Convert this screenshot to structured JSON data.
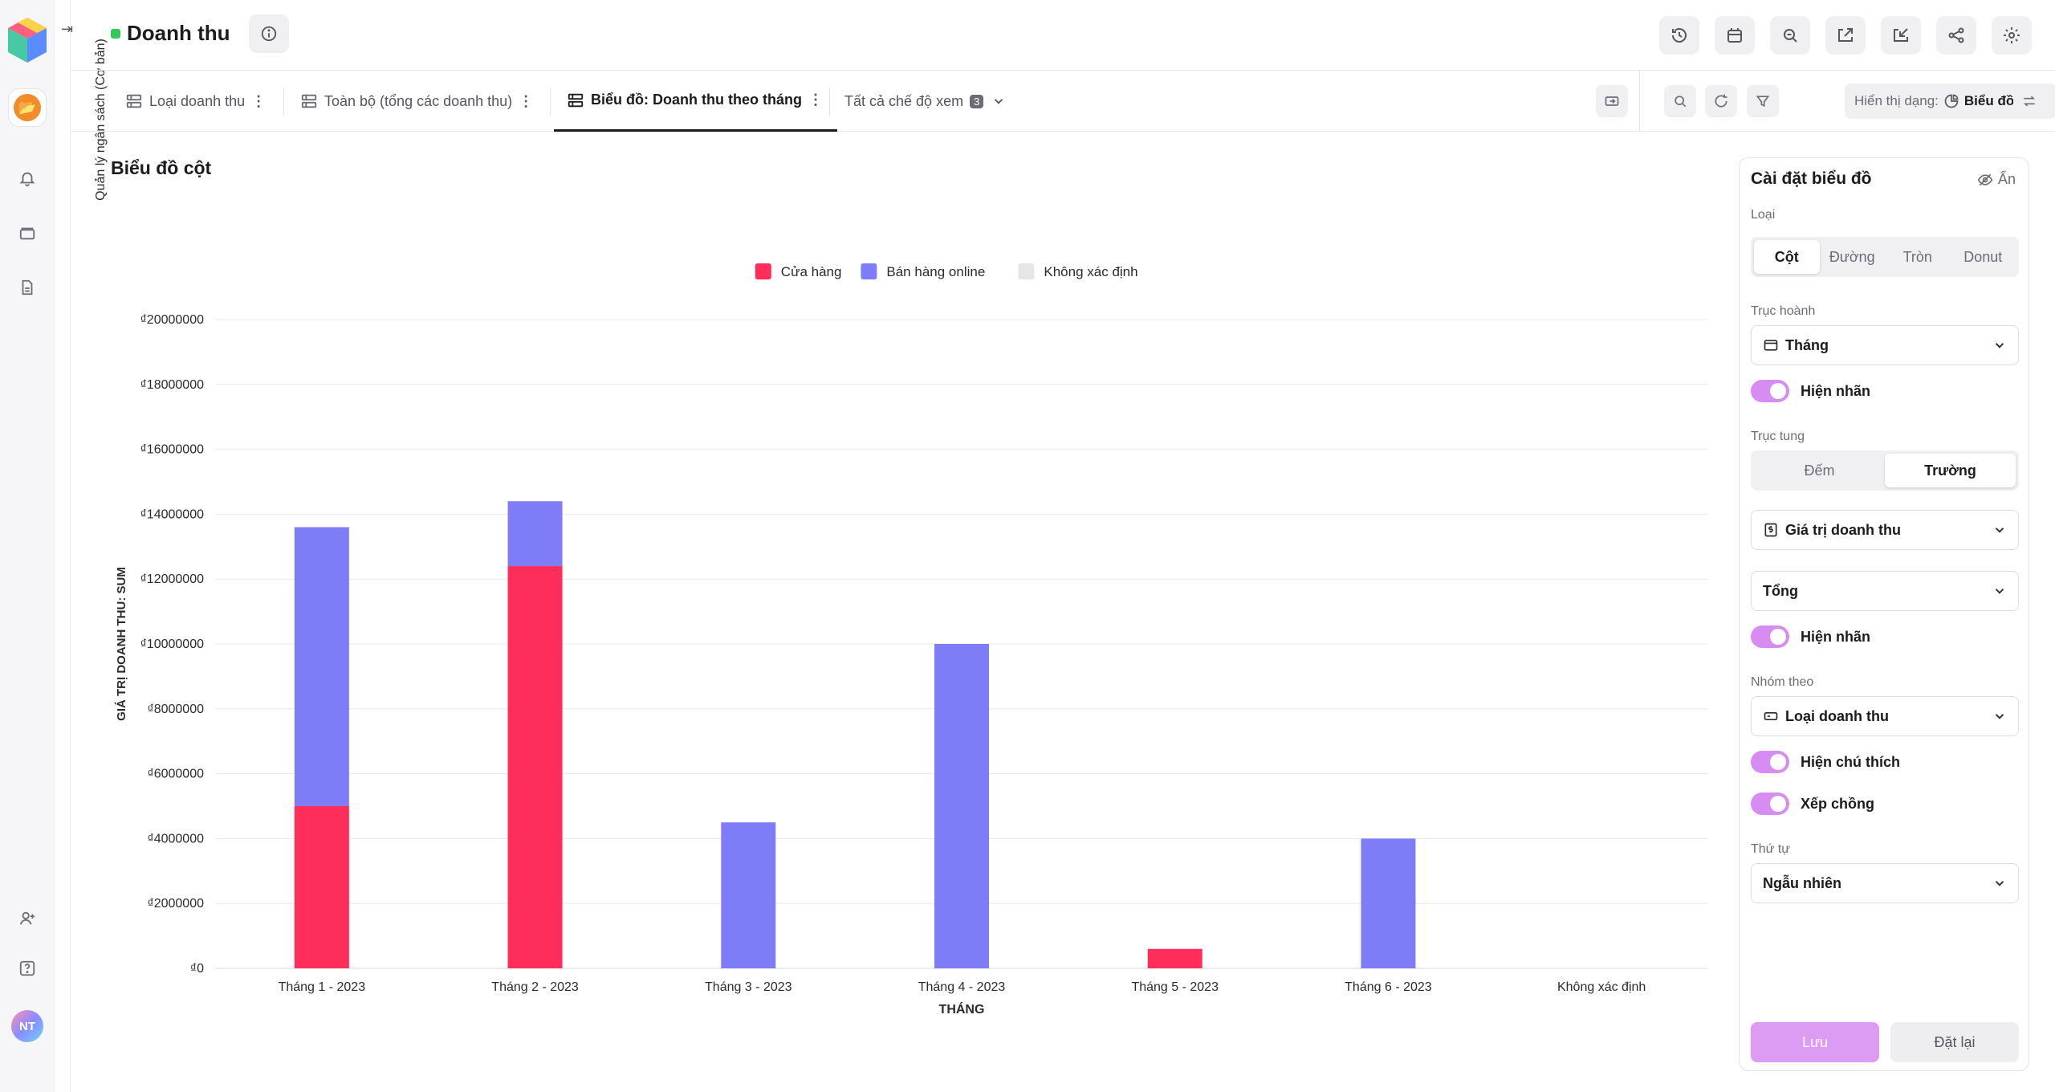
{
  "app": {
    "sidebar_vertical_label": "Quản lý ngân sách (Cơ bản)",
    "avatar_initials": "NT"
  },
  "header": {
    "title": "Doanh thu"
  },
  "tabs": [
    {
      "label": "Loại doanh thu"
    },
    {
      "label": "Toàn bộ (tổng các doanh thu)"
    },
    {
      "label": "Biểu đồ: Doanh thu theo tháng"
    },
    {
      "label": "Tất cả chế độ xem",
      "count": "3"
    }
  ],
  "toolbar": {
    "display_prefix": "Hiển thị dạng:",
    "display_value": "Biểu đồ"
  },
  "main": {
    "chart_title": "Biểu đồ cột"
  },
  "chart_data": {
    "type": "bar",
    "stacked": true,
    "categories": [
      "Tháng 1 - 2023",
      "Tháng 2 - 2023",
      "Tháng 3 - 2023",
      "Tháng 4 - 2023",
      "Tháng 5 - 2023",
      "Tháng 6 -  2023",
      "Không xác định"
    ],
    "series": [
      {
        "name": "Cửa hàng",
        "color": "#ff2d5a",
        "values": [
          5000000,
          12400000,
          0,
          0,
          600000,
          0,
          0
        ]
      },
      {
        "name": "Bán hàng online",
        "color": "#7f7cf8",
        "values": [
          8600000,
          2000000,
          4500000,
          10000000,
          0,
          4000000,
          0
        ]
      },
      {
        "name": "Không xác định",
        "color": "#e6e6e9",
        "values": [
          0,
          0,
          0,
          0,
          0,
          0,
          0
        ]
      }
    ],
    "xlabel": "THÁNG",
    "ylabel": "GIÁ TRỊ DOANH THU: SUM",
    "ylim": [
      0,
      20000000
    ],
    "yticks": [
      "₫0",
      "₫2000000",
      "₫4000000",
      "₫6000000",
      "₫8000000",
      "₫10000000",
      "₫12000000",
      "₫14000000",
      "₫16000000",
      "₫18000000",
      "₫20000000"
    ],
    "legend_position": "top-center",
    "grid": true
  },
  "settings": {
    "title": "Cài đặt biểu đồ",
    "hide_label": "Ẩn",
    "type_label": "Loại",
    "type_options": [
      "Cột",
      "Đường",
      "Tròn",
      "Donut"
    ],
    "type_selected": "Cột",
    "x_axis_label": "Trục hoành",
    "x_axis_value": "Tháng",
    "show_label_1": "Hiện nhãn",
    "y_axis_label": "Trục tung",
    "y_axis_options": [
      "Đếm",
      "Trường"
    ],
    "y_axis_selected": "Trường",
    "y_field_value": "Giá trị doanh thu",
    "aggregate_value": "Tổng",
    "show_label_2": "Hiện nhãn",
    "group_label": "Nhóm theo",
    "group_value": "Loại doanh thu",
    "show_legend": "Hiện chú thích",
    "stacked": "Xếp chồng",
    "order_label": "Thứ tự",
    "order_value": "Ngẫu nhiên",
    "save": "Lưu",
    "reset": "Đặt lại"
  }
}
